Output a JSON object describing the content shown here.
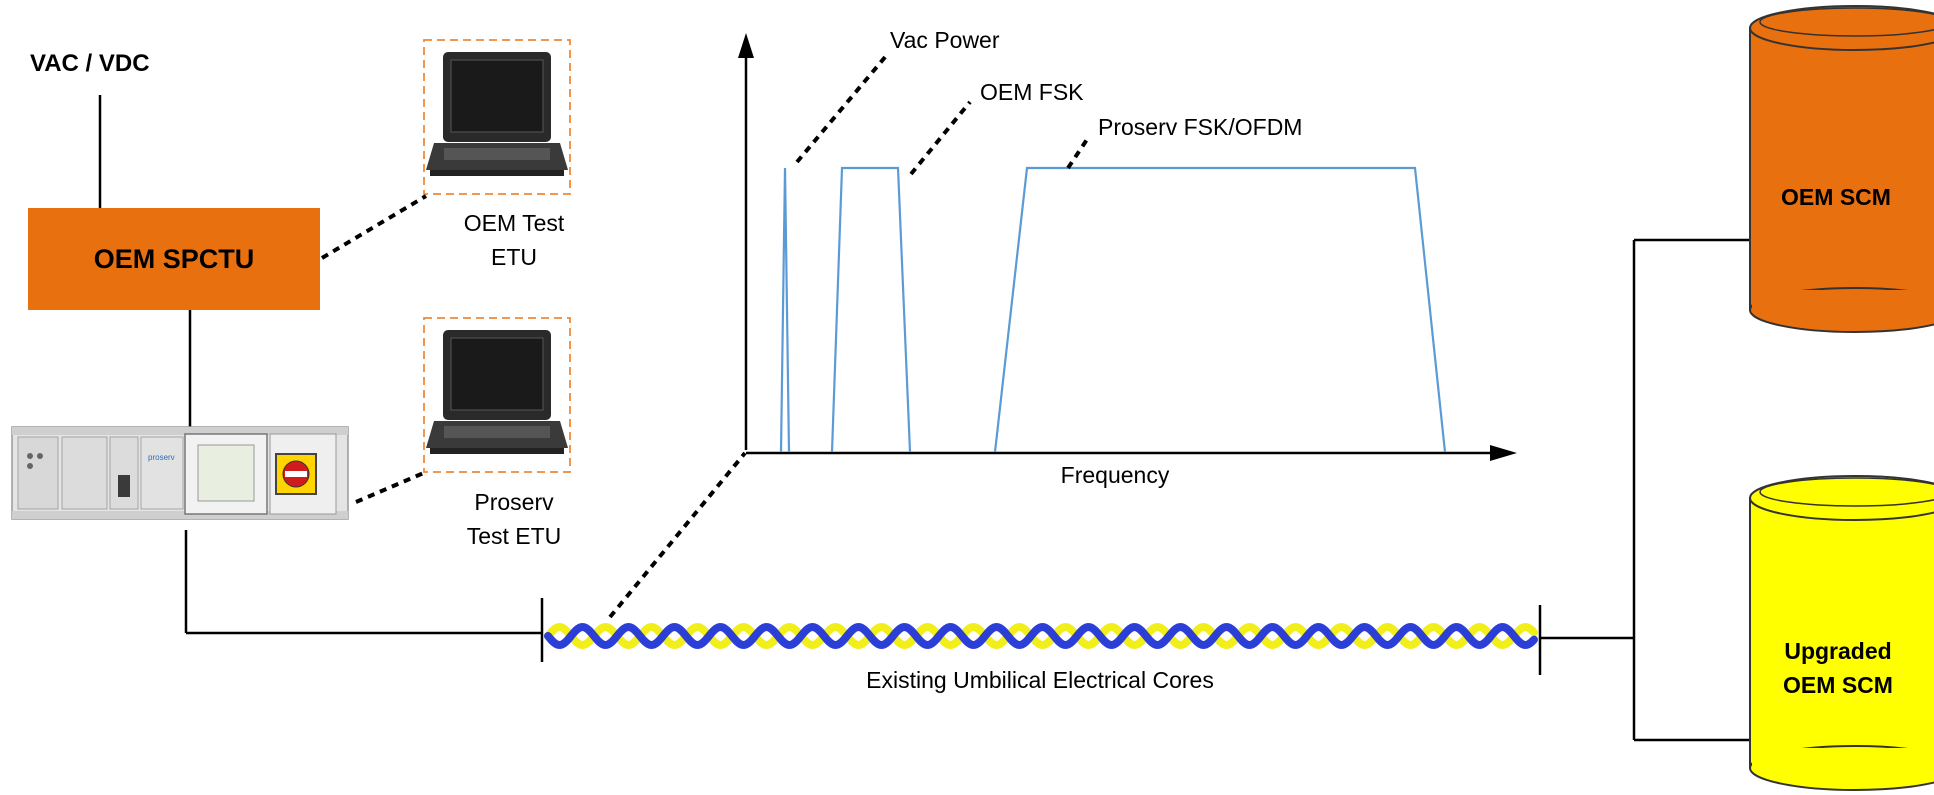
{
  "power_label": "VAC / VDC",
  "spctu_label": "OEM SPCTU",
  "laptop_oem": {
    "line1": "OEM Test",
    "line2": "ETU"
  },
  "laptop_proserv": {
    "line1": "Proserv",
    "line2": "Test ETU"
  },
  "spectrum": {
    "x_label": "Frequency",
    "signals": [
      {
        "label": "Vac Power"
      },
      {
        "label": "OEM FSK"
      },
      {
        "label": "Proserv FSK/OFDM"
      }
    ]
  },
  "umbilical_label": "Existing Umbilical Electrical Cores",
  "scm_top": {
    "line1": "OEM SCM",
    "color": "#e8700f"
  },
  "scm_bottom": {
    "line1": "Upgraded",
    "line2": "OEM SCM",
    "color": "#ffff00"
  },
  "colors": {
    "spctu": "#e8700f",
    "spectrum_line": "#5b9bd5",
    "cable_a": "#2b3fd6",
    "cable_b": "#f2ee1a",
    "laptop_frame": "#ee8a3a"
  }
}
